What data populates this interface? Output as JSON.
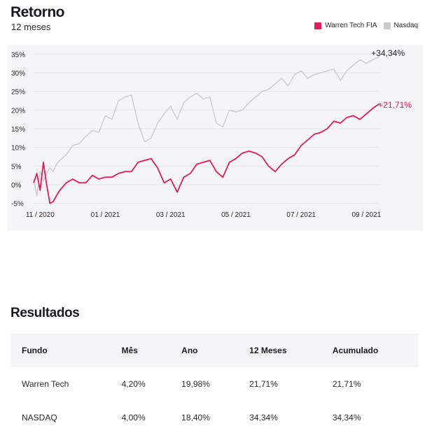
{
  "header": {
    "title": "Retorno",
    "subtitle": "12 meses"
  },
  "legend": [
    {
      "label": "Warren Tech FIA",
      "color": "#e6195a"
    },
    {
      "label": "Nasdaq",
      "color": "#c9c9ce"
    }
  ],
  "chart_data": {
    "type": "line",
    "ylim": [
      -6,
      36
    ],
    "y_ticks": [
      "35%",
      "30%",
      "25%",
      "20%",
      "15%",
      "10%",
      "5%",
      "0%",
      "-5%"
    ],
    "y_tick_values": [
      35,
      30,
      25,
      20,
      15,
      10,
      5,
      0,
      -5
    ],
    "x_ticks": [
      "11 / 2020",
      "01 / 2021",
      "03 / 2021",
      "05 / 2021",
      "07 / 2021",
      "09 / 2021"
    ],
    "x_tick_positions": [
      0.2,
      2.2,
      4.2,
      6.2,
      8.2,
      10.2
    ],
    "x_range": [
      0,
      10.6
    ],
    "grid": true,
    "end_labels": {
      "Nasdaq": "+34,34%",
      "Warren Tech FIA": "+21,71%"
    },
    "series": [
      {
        "name": "Nasdaq",
        "color": "#c9c9ce",
        "x": [
          0.0,
          0.1,
          0.2,
          0.3,
          0.4,
          0.5,
          0.6,
          0.7,
          0.8,
          1.0,
          1.2,
          1.4,
          1.6,
          1.8,
          2.0,
          2.2,
          2.4,
          2.6,
          2.8,
          3.0,
          3.2,
          3.4,
          3.6,
          3.8,
          4.0,
          4.2,
          4.4,
          4.6,
          4.8,
          5.0,
          5.2,
          5.4,
          5.6,
          5.8,
          6.0,
          6.2,
          6.4,
          6.6,
          6.8,
          7.0,
          7.2,
          7.4,
          7.6,
          7.8,
          8.0,
          8.2,
          8.4,
          8.6,
          8.8,
          9.0,
          9.2,
          9.4,
          9.6,
          9.8,
          10.0,
          10.2,
          10.4,
          10.6
        ],
        "values": [
          1.5,
          -3,
          3.5,
          1,
          3,
          4.5,
          3.5,
          5.5,
          6.5,
          8,
          10.5,
          11,
          13,
          14.5,
          14,
          18.5,
          17.5,
          22.5,
          23.5,
          24,
          16.5,
          11.5,
          12.5,
          16.5,
          19,
          21,
          17.5,
          22,
          23.5,
          24.5,
          23,
          23.5,
          16.5,
          15.5,
          20,
          19.5,
          20,
          22,
          23.5,
          25,
          25.5,
          27,
          28.5,
          26.5,
          29.5,
          30.5,
          28.5,
          29.5,
          30,
          30.5,
          31,
          28,
          30.5,
          32,
          33.5,
          32.5,
          33.5,
          34.34
        ]
      },
      {
        "name": "Warren Tech FIA",
        "color": "#e6195a",
        "x": [
          0.0,
          0.1,
          0.2,
          0.3,
          0.4,
          0.5,
          0.6,
          0.7,
          0.8,
          1.0,
          1.2,
          1.4,
          1.6,
          1.8,
          2.0,
          2.2,
          2.4,
          2.6,
          2.8,
          3.0,
          3.2,
          3.4,
          3.6,
          3.8,
          4.0,
          4.2,
          4.4,
          4.6,
          4.8,
          5.0,
          5.2,
          5.4,
          5.6,
          5.8,
          6.0,
          6.2,
          6.4,
          6.6,
          6.8,
          7.0,
          7.2,
          7.4,
          7.6,
          7.8,
          8.0,
          8.2,
          8.4,
          8.6,
          8.8,
          9.0,
          9.2,
          9.4,
          9.6,
          9.8,
          10.0,
          10.2,
          10.4,
          10.6
        ],
        "values": [
          0.5,
          3,
          -1.5,
          6,
          0,
          -5,
          -4.5,
          -3,
          -1.5,
          0.5,
          1.5,
          0.5,
          0.5,
          2.5,
          1.5,
          2,
          2,
          3,
          3.5,
          3.5,
          6,
          6.5,
          7,
          4.5,
          0.5,
          1.5,
          -2,
          2,
          3,
          5.5,
          6,
          6.5,
          3.5,
          2,
          6,
          7,
          8.5,
          9,
          8.5,
          7.5,
          5,
          3.5,
          5.5,
          7,
          8,
          10.5,
          12,
          13.5,
          14,
          15,
          17,
          16.5,
          18,
          18.5,
          17.5,
          19,
          20.5,
          21.71
        ]
      }
    ]
  },
  "results": {
    "title": "Resultados",
    "columns": [
      "Fundo",
      "Mês",
      "Ano",
      "12 Meses",
      "Acumulado"
    ],
    "rows": [
      [
        "Warren Tech",
        "4,20%",
        "19,98%",
        "21,71%",
        "21,71%"
      ],
      [
        "NASDAQ",
        "4,00%",
        "18,40%",
        "34,34%",
        "34,34%"
      ]
    ]
  }
}
